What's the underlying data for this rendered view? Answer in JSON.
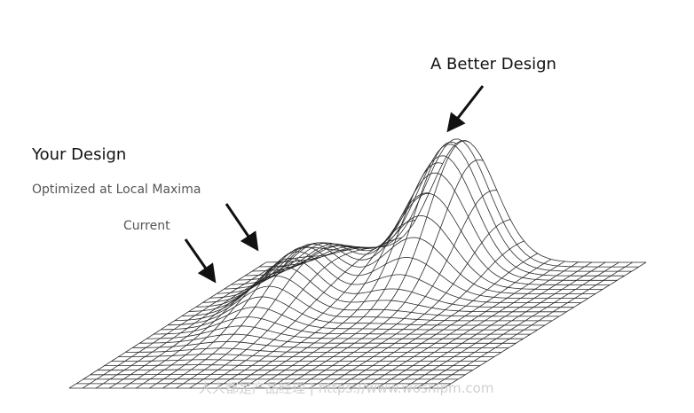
{
  "labels": {
    "better_design": "A Better Design",
    "your_design": "Your Design",
    "optimized": "Optimized at Local Maxima",
    "current": "Current"
  },
  "watermark": "人人都是产品经理 | https://www.woshipm.com",
  "colors": {
    "mesh": "#2a2a2a",
    "arrow": "#111111",
    "label": "#111111",
    "sublabel": "#555555"
  }
}
